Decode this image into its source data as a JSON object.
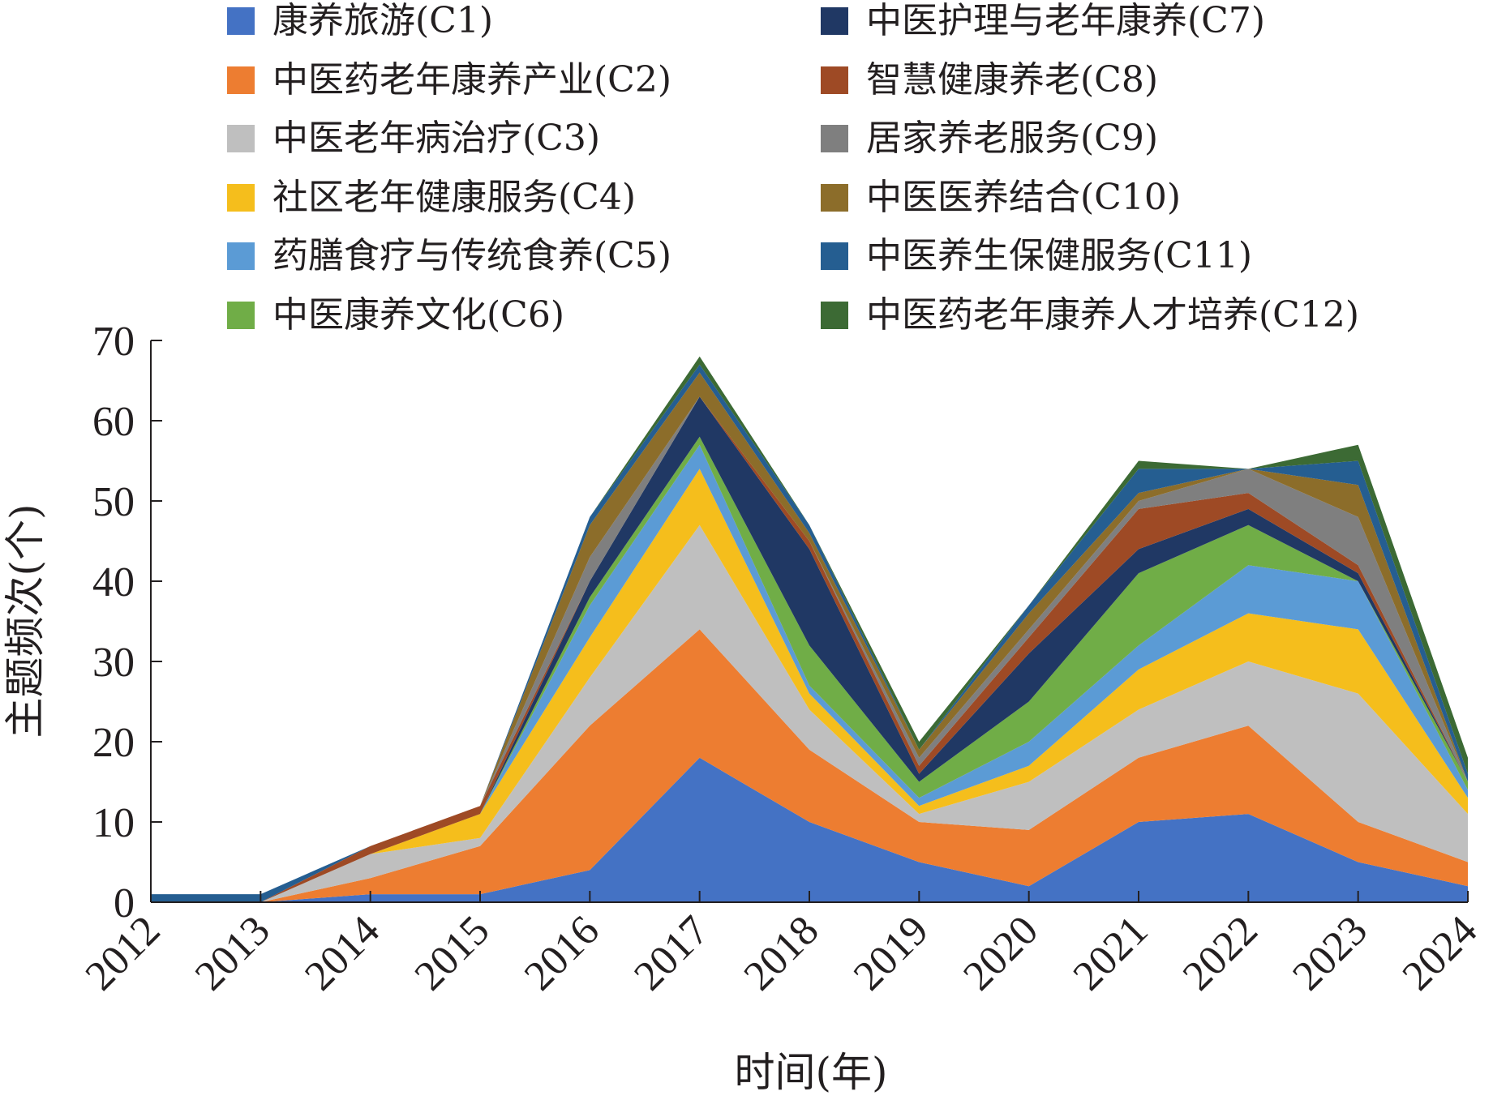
{
  "chart_data": {
    "type": "area",
    "stacked": true,
    "xlabel": "时间(年)",
    "ylabel": "主题频次(个)",
    "ylim": [
      0,
      70
    ],
    "yticks": [
      0,
      10,
      20,
      30,
      40,
      50,
      60,
      70
    ],
    "categories": [
      "2012",
      "2013",
      "2014",
      "2015",
      "2016",
      "2017",
      "2018",
      "2019",
      "2020",
      "2021",
      "2022",
      "2023",
      "2024"
    ],
    "legend_position": "top",
    "series": [
      {
        "name": "康养旅游(C1)",
        "color": "#4472c4",
        "values": [
          0,
          0,
          1,
          1,
          4,
          18,
          10,
          5,
          2,
          10,
          11,
          5,
          2
        ]
      },
      {
        "name": "中医药老年康养产业(C2)",
        "color": "#ed7d31",
        "values": [
          0,
          0,
          2,
          6,
          18,
          16,
          9,
          5,
          7,
          8,
          11,
          5,
          3
        ]
      },
      {
        "name": "中医老年病治疗(C3)",
        "color": "#bfbfbf",
        "values": [
          0,
          0,
          3,
          1,
          6,
          13,
          5,
          1,
          6,
          6,
          8,
          16,
          6
        ]
      },
      {
        "name": "社区老年健康服务(C4)",
        "color": "#f5be1c",
        "values": [
          0,
          0,
          0,
          3,
          5,
          7,
          2,
          1,
          2,
          5,
          6,
          8,
          2
        ]
      },
      {
        "name": "药膳食疗与传统食养(C5)",
        "color": "#5b9bd5",
        "values": [
          0,
          0,
          0,
          0,
          4,
          3,
          1,
          1,
          3,
          3,
          6,
          6,
          1
        ]
      },
      {
        "name": "中医康养文化(C6)",
        "color": "#70ad47",
        "values": [
          0,
          0,
          0,
          0,
          1,
          1,
          5,
          2,
          5,
          9,
          5,
          0,
          1
        ]
      },
      {
        "name": "中医护理与老年康养(C7)",
        "color": "#203864",
        "values": [
          0,
          0,
          0,
          0,
          2,
          5,
          12,
          1,
          6,
          3,
          2,
          1,
          0
        ]
      },
      {
        "name": "智慧健康养老(C8)",
        "color": "#9e4a25",
        "values": [
          0,
          0,
          1,
          1,
          0,
          0,
          1,
          1,
          2,
          5,
          2,
          1,
          0
        ]
      },
      {
        "name": "居家养老服务(C9)",
        "color": "#7f7f7f",
        "values": [
          0,
          0,
          0,
          0,
          3,
          0,
          0,
          1,
          1,
          1,
          3,
          6,
          0
        ]
      },
      {
        "name": "中医医养结合(C10)",
        "color": "#8c6d2a",
        "values": [
          0,
          0,
          0,
          0,
          4,
          3,
          1,
          1,
          2,
          1,
          0,
          4,
          0
        ]
      },
      {
        "name": "中医养生保健服务(C11)",
        "color": "#255e91",
        "values": [
          1,
          1,
          0,
          0,
          1,
          1,
          1,
          0,
          1,
          3,
          0,
          3,
          1
        ]
      },
      {
        "name": "中医药老年康养人才培养(C12)",
        "color": "#3c6a34",
        "values": [
          0,
          0,
          0,
          0,
          0,
          1,
          0,
          1,
          0,
          1,
          0,
          2,
          2
        ]
      }
    ]
  }
}
